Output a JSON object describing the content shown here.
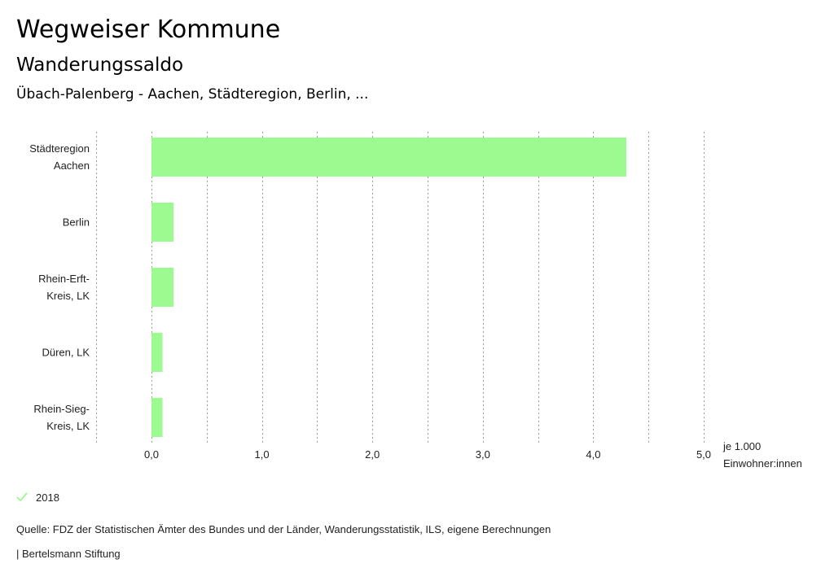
{
  "header": {
    "title": "Wegweiser Kommune",
    "subtitle": "Wanderungssaldo",
    "region": "Übach-Palenberg - Aachen, Städteregion, Berlin, ..."
  },
  "chart_data": {
    "type": "bar",
    "orientation": "horizontal",
    "categories": [
      [
        "Städteregion",
        "Aachen"
      ],
      [
        "Berlin"
      ],
      [
        "Rhein-Erft-",
        "Kreis, LK"
      ],
      [
        "Düren, LK"
      ],
      [
        "Rhein-Sieg-",
        "Kreis, LK"
      ]
    ],
    "series": [
      {
        "name": "2018",
        "color": "#9cfa91",
        "values": [
          4.3,
          0.2,
          0.2,
          0.1,
          0.1
        ]
      }
    ],
    "xlim": [
      -0.5,
      5.0
    ],
    "xticks": [
      0,
      1,
      2,
      3,
      4,
      5
    ],
    "xtick_labels": [
      "0,0",
      "1,0",
      "2,0",
      "3,0",
      "4,0",
      "5,0"
    ],
    "xlabel": [
      "je 1.000",
      "Einwohner:innen"
    ],
    "grid": "vertical-dotted",
    "legend_position": "bottom-left"
  },
  "legend": {
    "label": "2018",
    "icon": "check-icon",
    "color": "#9cfa91"
  },
  "footer": {
    "source": "Quelle: FDZ der Statistischen Ämter des Bundes und der Länder, Wanderungsstatistik, ILS, eigene Berechnungen",
    "publisher": "| Bertelsmann Stiftung"
  }
}
